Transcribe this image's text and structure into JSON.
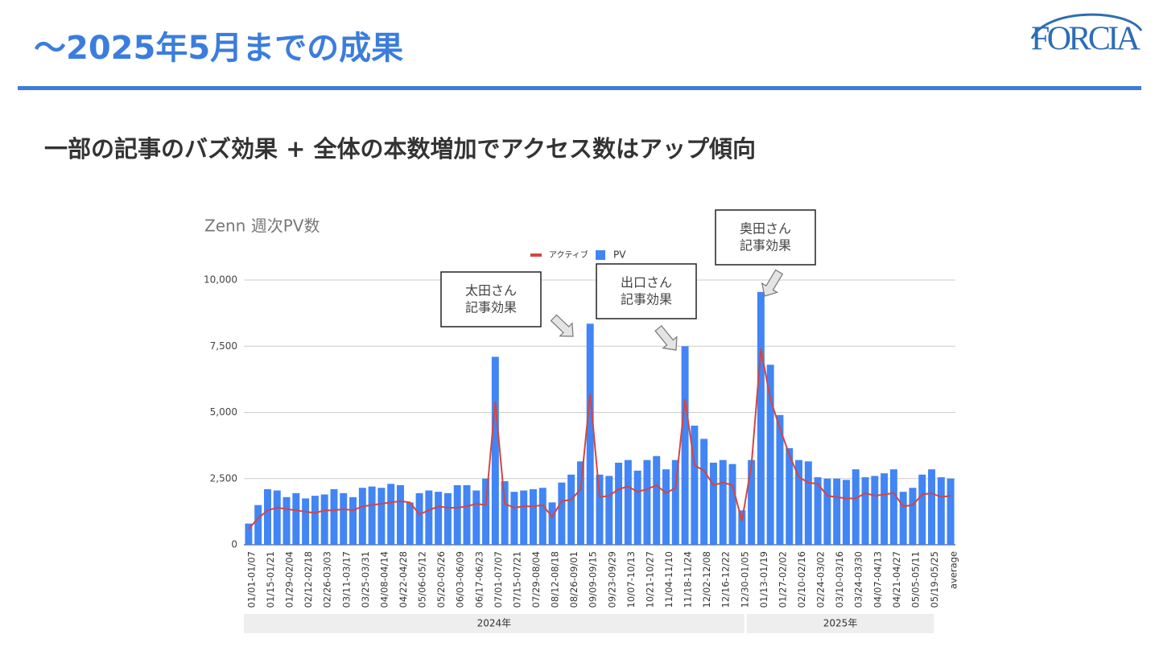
{
  "header": {
    "title": "〜2025年5月までの成果",
    "logo": "FORCIA"
  },
  "subtitle": "一部の記事のバズ効果 + 全体の本数増加でアクセス数はアップ傾向",
  "chart_data": {
    "type": "bar",
    "title": "Zenn 週次PV数",
    "categories": [
      "01/01-01/07",
      null,
      "01/15-01/21",
      null,
      "01/29-02/04",
      null,
      "02/12-02/18",
      null,
      "02/26-03/03",
      null,
      "03/11-03/17",
      null,
      "03/25-03/31",
      null,
      "04/08-04/14",
      null,
      "04/22-04/28",
      null,
      "05/06-05/12",
      null,
      "05/20-05/26",
      null,
      "06/03-06/09",
      null,
      "06/17-06/23",
      null,
      "07/01-07/07",
      null,
      "07/15-07/21",
      null,
      "07/29-08/04",
      null,
      "08/12-08/18",
      null,
      "08/26-09/01",
      null,
      "09/09-09/15",
      null,
      "09/23-09/29",
      null,
      "10/07-10/13",
      null,
      "10/21-10/27",
      null,
      "11/04-11/10",
      null,
      "11/18-11/24",
      null,
      "12/02-12/08",
      null,
      "12/16-12/22",
      null,
      "12/30-01/05",
      null,
      "01/13-01/19",
      null,
      "01/27-02/02",
      null,
      "02/10-02/16",
      null,
      "02/24-03/02",
      null,
      "03/10-03/16",
      null,
      "03/24-03/30",
      null,
      "04/07-04/13",
      null,
      "04/21-04/27",
      null,
      "05/05-05/11",
      null,
      "05/19-05/25",
      null,
      "average"
    ],
    "series": [
      {
        "name": "アクティブ",
        "type": "line",
        "color": "#d64541",
        "values": [
          600,
          1000,
          1300,
          1400,
          1350,
          1300,
          1250,
          1200,
          1300,
          1300,
          1350,
          1300,
          1450,
          1500,
          1550,
          1600,
          1650,
          1600,
          1150,
          1300,
          1450,
          1400,
          1400,
          1450,
          1550,
          1500,
          5400,
          1550,
          1400,
          1450,
          1450,
          1500,
          1050,
          1650,
          1700,
          2100,
          5700,
          1800,
          1850,
          2100,
          2200,
          2000,
          2100,
          2250,
          1950,
          2150,
          5500,
          3000,
          2800,
          2250,
          2350,
          2250,
          900,
          3000,
          7400,
          5500,
          4400,
          3400,
          2550,
          2350,
          2300,
          1850,
          1800,
          1750,
          1750,
          1950,
          1850,
          1900,
          1950,
          1450,
          1500,
          1900,
          1950,
          1800,
          1850
        ]
      },
      {
        "name": "PV",
        "type": "bar",
        "color": "#4285f4",
        "values": [
          800,
          1500,
          2100,
          2050,
          1800,
          1950,
          1750,
          1850,
          1900,
          2100,
          1950,
          1800,
          2150,
          2200,
          2150,
          2300,
          2250,
          1600,
          1950,
          2050,
          2000,
          1950,
          2250,
          2250,
          2050,
          2500,
          7100,
          2400,
          2000,
          2050,
          2100,
          2150,
          1600,
          2350,
          2650,
          3150,
          8350,
          2650,
          2600,
          3100,
          3200,
          2800,
          3200,
          3350,
          2850,
          3200,
          7500,
          4500,
          4000,
          3100,
          3200,
          3050,
          1300,
          3200,
          9550,
          6800,
          4900,
          3650,
          3200,
          3150,
          2550,
          2500,
          2500,
          2450,
          2850,
          2550,
          2600,
          2700,
          2850,
          2000,
          2150,
          2650,
          2850,
          2550,
          2500
        ]
      }
    ],
    "ylim": [
      0,
      10000
    ],
    "yticks": [
      0,
      {
        "value": 2500,
        "label": "2,500"
      },
      {
        "value": 5000,
        "label": "5,000"
      },
      {
        "value": 7500,
        "label": "7,500"
      },
      {
        "value": 10000,
        "label": "10,000"
      }
    ],
    "grid": true,
    "legend": "top",
    "groups": [
      {
        "label": "2024年",
        "first": 0,
        "last": 52
      },
      {
        "label": "2025年",
        "first": 53,
        "last": 72
      }
    ],
    "annotations": [
      {
        "lines": [
          "太田さん",
          "記事効果"
        ],
        "at": 36
      },
      {
        "lines": [
          "出口さん",
          "記事効果"
        ],
        "at": 46
      },
      {
        "lines": [
          "奥田さん",
          "記事効果"
        ],
        "at": 54
      }
    ]
  }
}
